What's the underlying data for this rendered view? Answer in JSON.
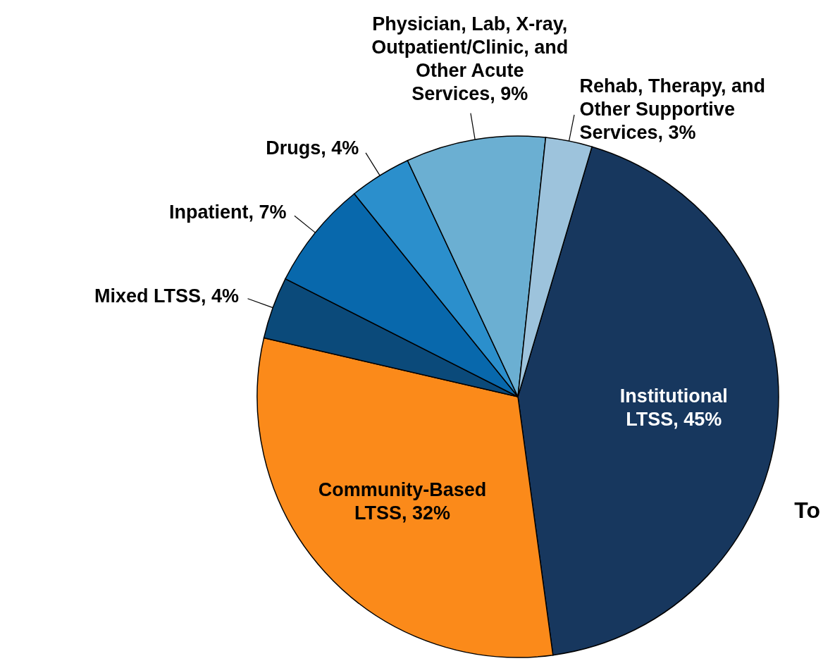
{
  "chart_data": {
    "type": "pie",
    "categories": [
      "Institutional LTSS",
      "Community-Based LTSS",
      "Mixed LTSS",
      "Inpatient",
      "Drugs",
      "Physician, Lab, X-ray, Outpatient/Clinic, and Other Acute Services",
      "Rehab, Therapy, and Other Supportive Services"
    ],
    "values": [
      45,
      32,
      4,
      7,
      4,
      9,
      3
    ],
    "value_labels": [
      "45%",
      "32%",
      "4%",
      "7%",
      "4%",
      "9%",
      "3%"
    ],
    "colors": [
      "#17375e",
      "#fb8a1a",
      "#0b4a7a",
      "#0868ac",
      "#2b8fcc",
      "#6bafd2",
      "#9dc3dc"
    ],
    "annotations": [
      "To"
    ]
  }
}
